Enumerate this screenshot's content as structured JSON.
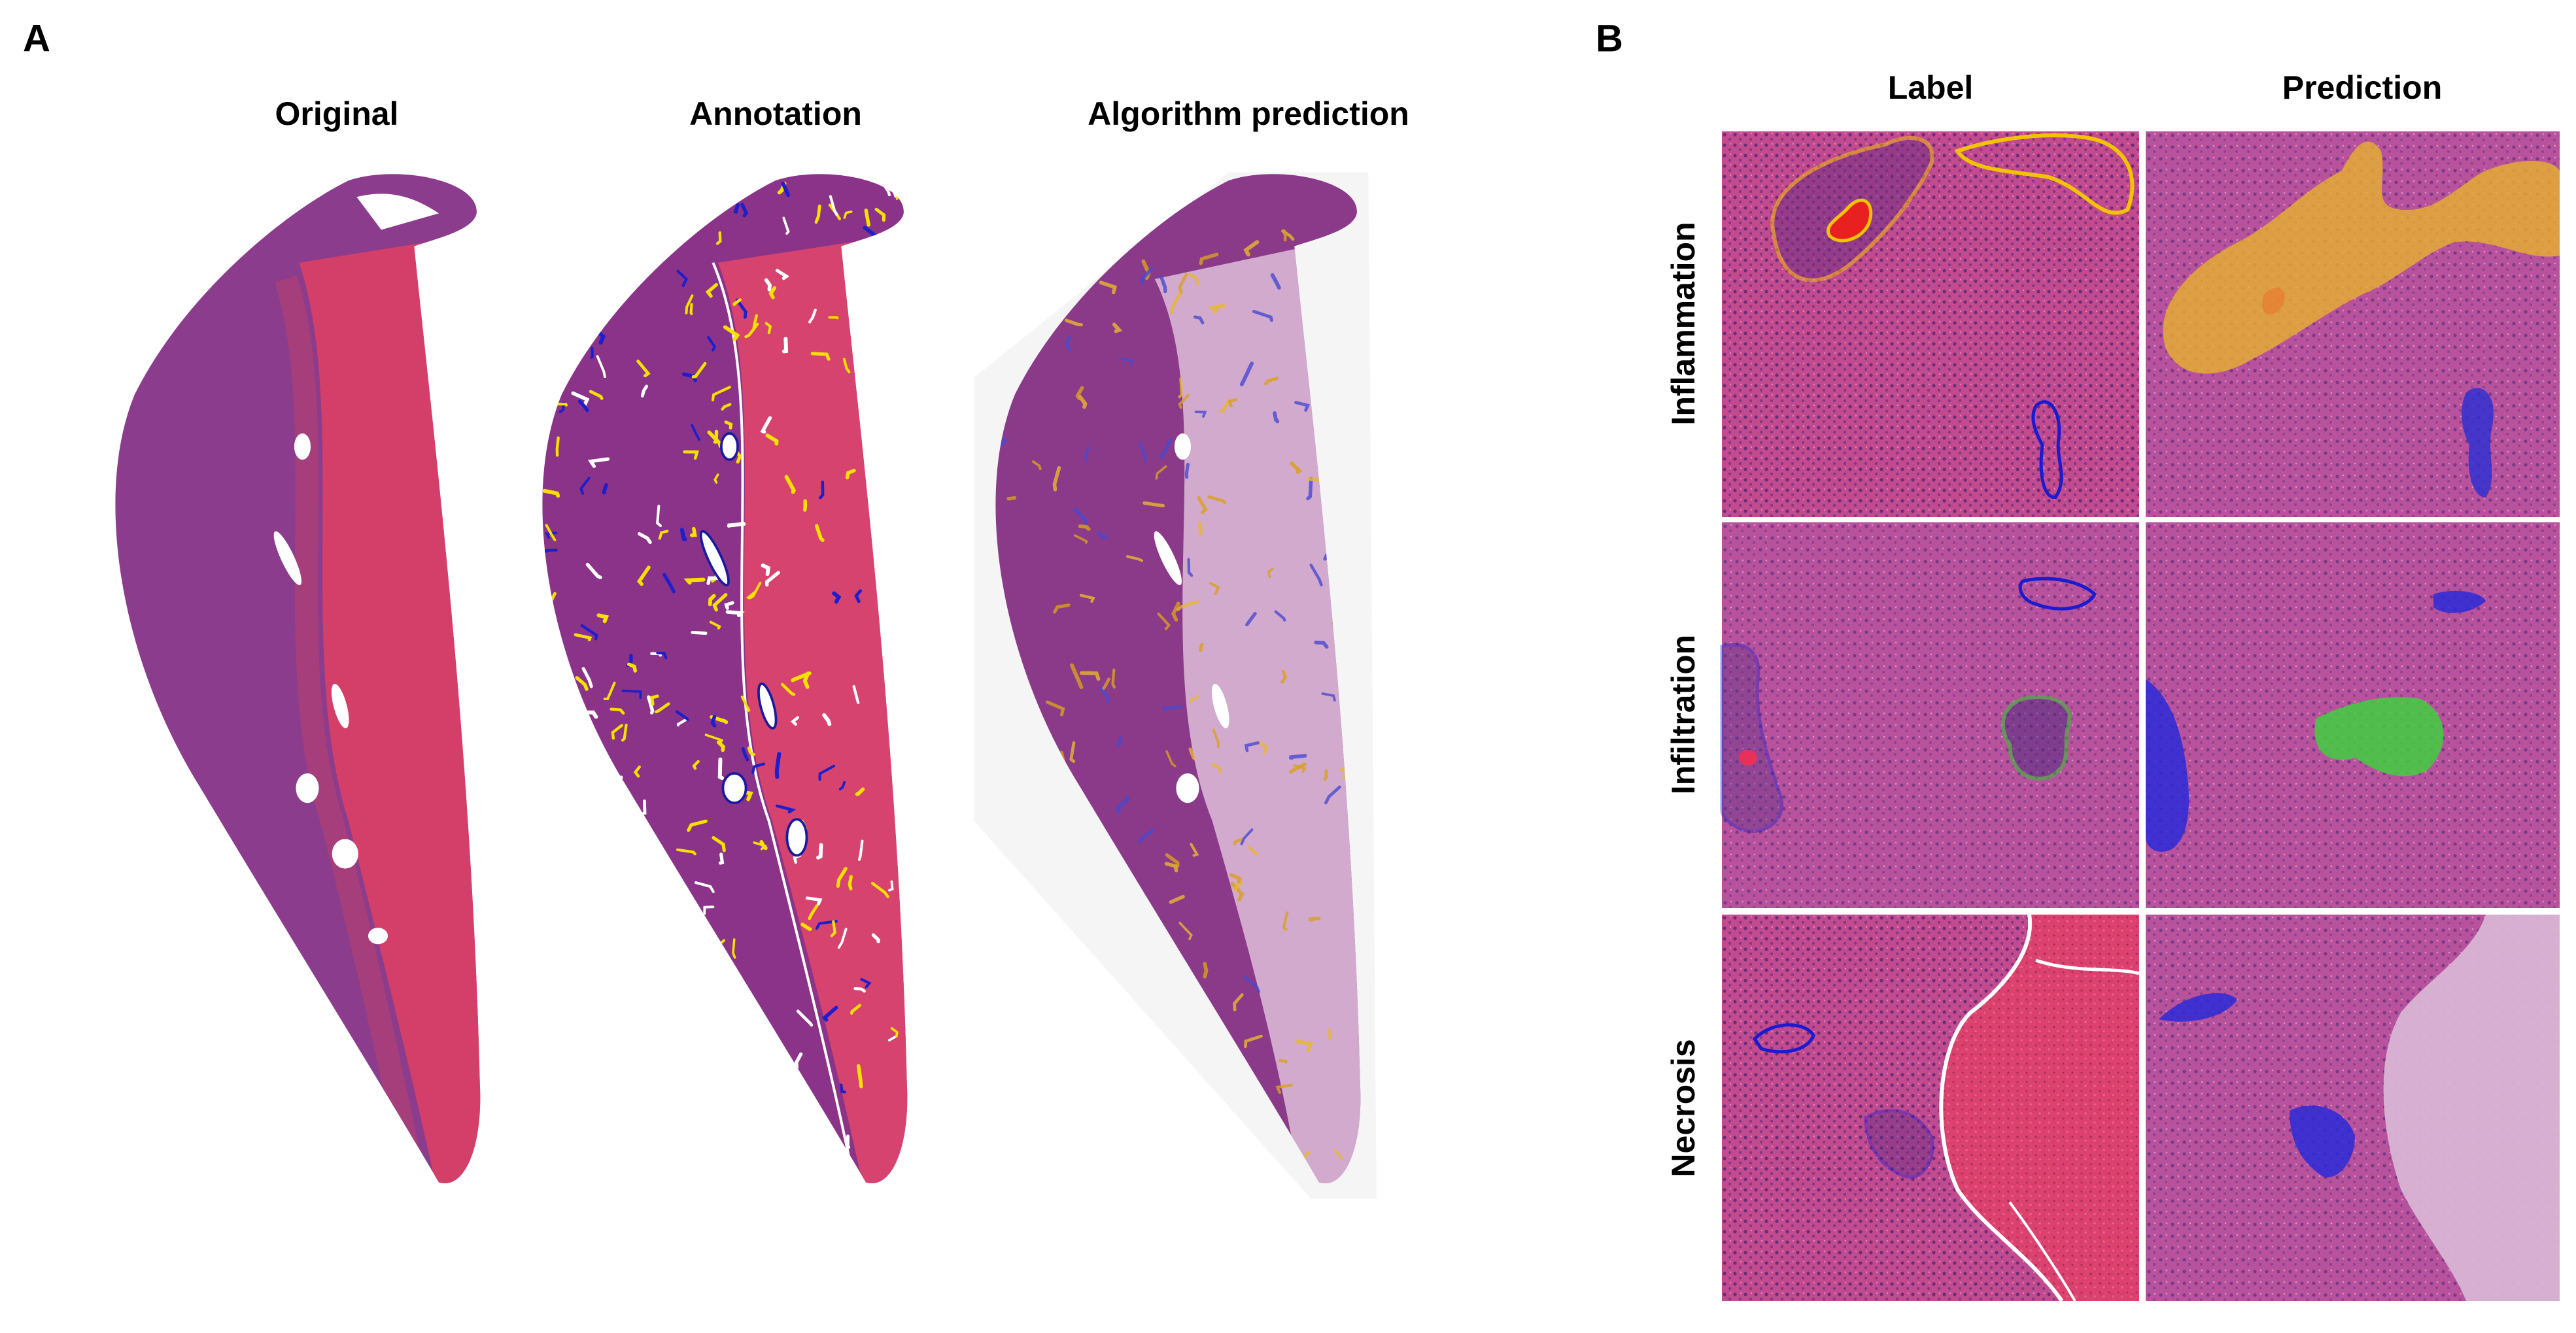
{
  "panels": {
    "a": {
      "label": "A",
      "columns": [
        "Original",
        "Annotation",
        "Algorithm prediction"
      ]
    },
    "b": {
      "label": "B",
      "columns": [
        "Label",
        "Prediction"
      ],
      "rows": [
        "Inflammation",
        "Infiltration",
        "Necrosis"
      ]
    }
  }
}
